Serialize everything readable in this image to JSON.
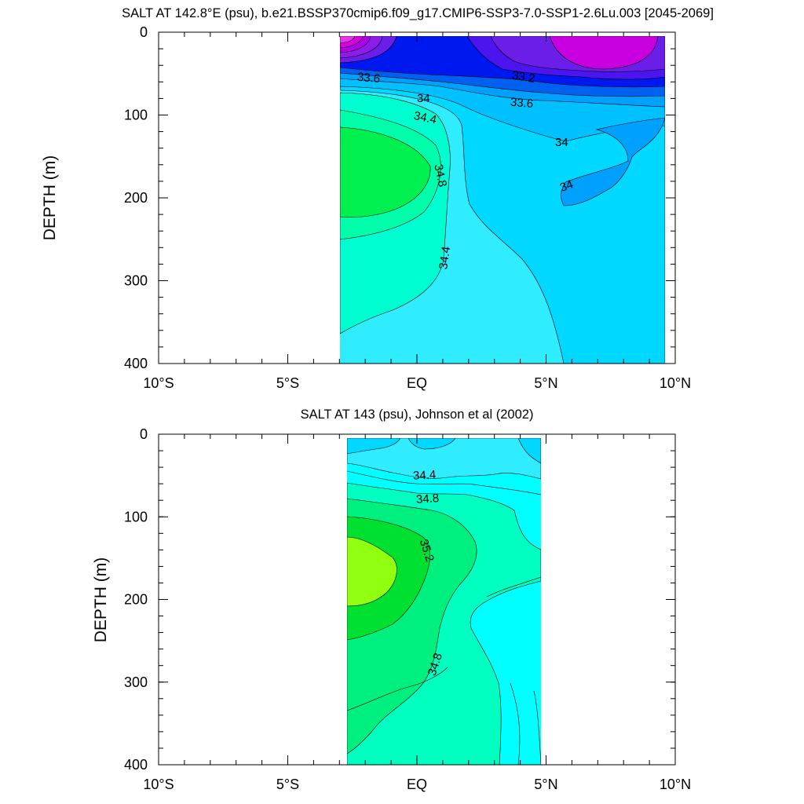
{
  "chart_data": [
    {
      "type": "contour",
      "title": "SALT AT 142.8°E (psu), b.e21.BSSP370cmip6.f09_g17.CMIP6-SSP3-7.0-SSP1-2.6Lu.003 [2045-2069]",
      "xlabel": "",
      "ylabel": "DEPTH (m)",
      "xlim": [
        -10,
        10
      ],
      "ylim": [
        400,
        0
      ],
      "data_extent_lat": [
        -3.1,
        10
      ],
      "data_extent_depth": [
        5,
        400
      ],
      "x_ticks": [
        {
          "value": -10,
          "label": "10°S"
        },
        {
          "value": -5,
          "label": "5°S"
        },
        {
          "value": 0,
          "label": "EQ"
        },
        {
          "value": 5,
          "label": "5°N"
        },
        {
          "value": 10,
          "label": "10°N"
        }
      ],
      "y_ticks": [
        0,
        100,
        200,
        300,
        400
      ],
      "contour_labels": [
        "33.6",
        "33.2",
        "34",
        "33.6",
        "34.4",
        "34",
        "34.8",
        "34",
        "34.4"
      ],
      "colors": {
        "s_lt_32_8": "#e030e8",
        "s_32_8_33_0": "#c800e0",
        "s_33_0_33_2": "#6a1ee8",
        "s_33_2_33_4": "#4c14ee",
        "s_33_4_33_6": "#0018f0",
        "s_33_6_33_8": "#0060f0",
        "s_33_8_34_0": "#00a0ff",
        "s_34_0_34_2": "#00c0ff",
        "s_34_2_34_4": "#00d8ff",
        "s_34_4_34_6": "#30ecff",
        "s_34_6_34_8": "#00ffd0",
        "s_gt_34_8": "#00f050"
      }
    },
    {
      "type": "contour",
      "title": "SALT AT 143 (psu), Johnson et al (2002)",
      "xlabel": "",
      "ylabel": "DEPTH (m)",
      "xlim": [
        -10,
        10
      ],
      "ylim": [
        400,
        0
      ],
      "data_extent_lat": [
        -2.8,
        5
      ],
      "data_extent_depth": [
        5,
        400
      ],
      "x_ticks": [
        {
          "value": -10,
          "label": "10°S"
        },
        {
          "value": -5,
          "label": "5°S"
        },
        {
          "value": 0,
          "label": "EQ"
        },
        {
          "value": 5,
          "label": "5°N"
        },
        {
          "value": 10,
          "label": "10°N"
        }
      ],
      "y_ticks": [
        0,
        100,
        200,
        300,
        400
      ],
      "contour_labels": [
        "34.4",
        "34.8",
        "35.2",
        "34.8"
      ],
      "colors": {
        "s_34_2_34_4": "#00d8ff",
        "s_34_4_34_6": "#30ecff",
        "s_34_6_34_8": "#00ffff",
        "s_34_8_35_0": "#00ffc0",
        "s_35_0_35_2": "#00f080",
        "s_35_2_35_4": "#00e030",
        "s_gt_35_4": "#90ff10"
      }
    }
  ]
}
